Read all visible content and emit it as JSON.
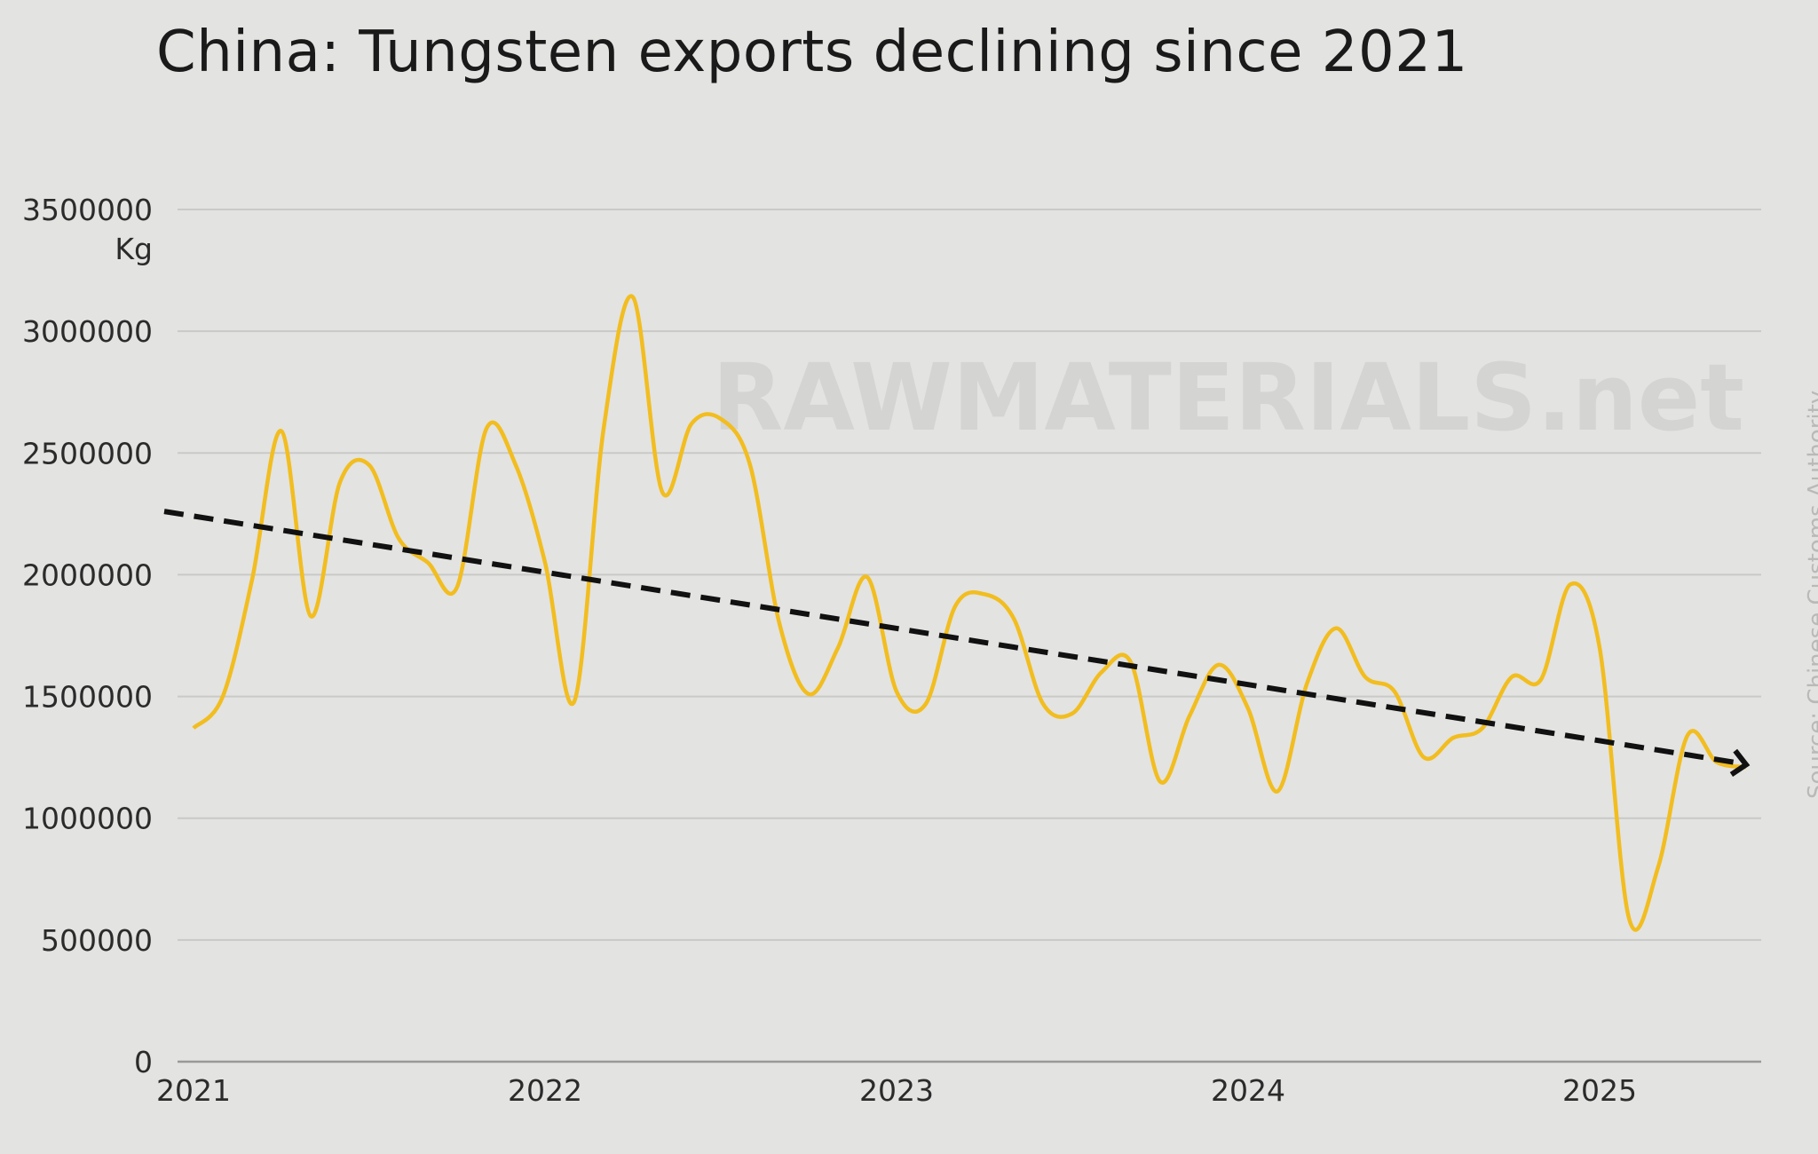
{
  "chart_data": {
    "type": "line",
    "title": "China: Tungsten exports declining since 2021",
    "ylabel": "Kg",
    "xlabel": "",
    "ylim": [
      0,
      3500000
    ],
    "yticks": [
      "0",
      "500000",
      "1000000",
      "1500000",
      "2000000",
      "2500000",
      "3000000",
      "3500000"
    ],
    "xticks": [
      "2021",
      "2022",
      "2023",
      "2024",
      "2025"
    ],
    "grid": true,
    "watermark": "RAWMATERIALS.net",
    "source": "Source: Chinese Customs Authority",
    "colors": {
      "series": "#f2bd1f",
      "trend": "#111111",
      "grid": "#c9c9c7",
      "background": "#e3e3e1"
    },
    "series": [
      {
        "x": [
          "2021-01",
          "2021-02",
          "2021-03",
          "2021-04",
          "2021-05",
          "2021-06",
          "2021-07",
          "2021-08",
          "2021-09",
          "2021-10",
          "2021-11",
          "2021-12",
          "2022-01",
          "2022-02",
          "2022-03",
          "2022-04",
          "2022-05",
          "2022-06",
          "2022-07",
          "2022-08",
          "2022-09",
          "2022-10",
          "2022-11",
          "2022-12",
          "2023-01",
          "2023-02",
          "2023-03",
          "2023-04",
          "2023-05",
          "2023-06",
          "2023-07",
          "2023-08",
          "2023-09",
          "2023-10",
          "2023-11",
          "2023-12",
          "2024-01",
          "2024-02",
          "2024-03",
          "2024-04",
          "2024-05",
          "2024-06",
          "2024-07",
          "2024-08",
          "2024-09",
          "2024-10",
          "2024-11",
          "2024-12",
          "2025-01",
          "2025-02",
          "2025-03",
          "2025-04",
          "2025-05",
          "2025-06"
        ],
        "values": [
          1370000,
          1500000,
          1980000,
          2590000,
          1830000,
          2380000,
          2450000,
          2150000,
          2050000,
          1950000,
          2600000,
          2450000,
          2050000,
          1480000,
          2600000,
          3140000,
          2340000,
          2620000,
          2640000,
          2450000,
          1800000,
          1510000,
          1700000,
          1990000,
          1520000,
          1470000,
          1870000,
          1920000,
          1820000,
          1470000,
          1430000,
          1600000,
          1640000,
          1150000,
          1420000,
          1630000,
          1450000,
          1110000,
          1550000,
          1780000,
          1580000,
          1520000,
          1250000,
          1330000,
          1370000,
          1580000,
          1570000,
          1960000,
          1700000,
          590000,
          800000,
          1340000,
          1230000,
          1210000
        ]
      }
    ],
    "trend": {
      "style": "dashed-arrow",
      "x": [
        "2020-12",
        "2025-06"
      ],
      "values": [
        2260000,
        1220000
      ]
    }
  }
}
